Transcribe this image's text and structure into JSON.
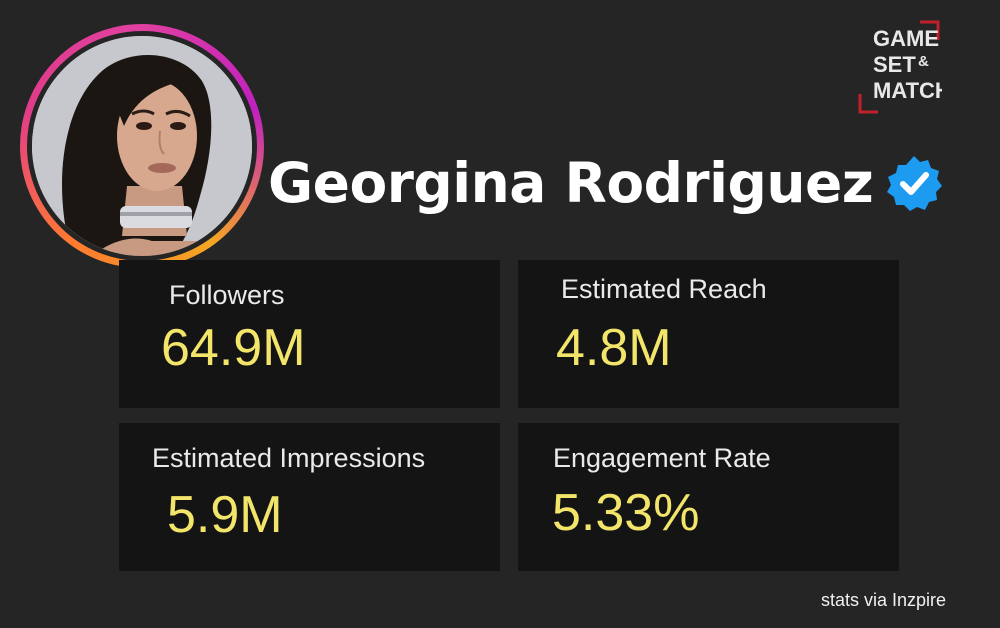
{
  "profile": {
    "name": "Georgina Rodriguez",
    "verified": true,
    "avatar_icon": "profile-photo",
    "ring_colors": [
      "#e040a0",
      "#f5a623"
    ]
  },
  "logo": {
    "line1": "GAME",
    "line2": "SET",
    "ampersand": "&",
    "line3": "MATCH",
    "bracket_color": "#c0202a"
  },
  "stats": {
    "followers": {
      "label": "Followers",
      "value": "64.9M"
    },
    "reach": {
      "label": "Estimated Reach",
      "value": "4.8M"
    },
    "impressions": {
      "label": "Estimated Impressions",
      "value": "5.9M"
    },
    "engagement": {
      "label": "Engagement Rate",
      "value": "5.33%"
    }
  },
  "credit": "stats via Inzpire",
  "colors": {
    "background": "#252525",
    "card": "#141414",
    "value": "#f3e56a",
    "verified_badge": "#1d9bf0"
  }
}
